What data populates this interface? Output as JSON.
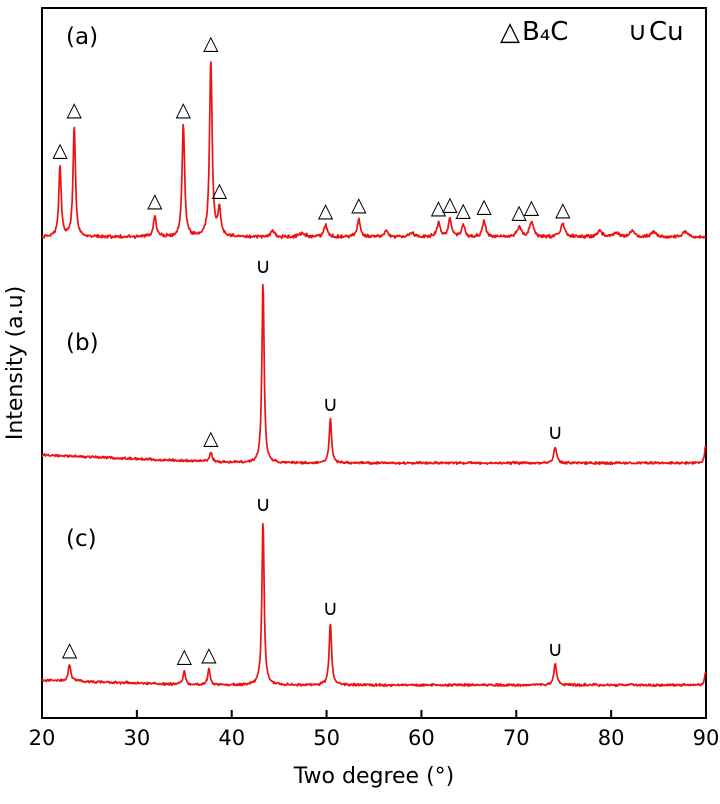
{
  "figure": {
    "background": "#ffffff",
    "trace_color": "#ee1111",
    "axis_color": "#000000"
  },
  "chart_data": {
    "type": "line",
    "title": "",
    "xlabel": "Two degree (°)",
    "ylabel": "Intensity (a.u)",
    "xlim": [
      20,
      90
    ],
    "x_ticks": [
      20,
      30,
      40,
      50,
      60,
      70,
      80,
      90
    ],
    "grid": false,
    "y_axis_units": "arbitrary (stacked XRD traces, no y ticks)",
    "legend": {
      "position": "top-right",
      "items": [
        {
          "key": "b4c",
          "symbol": "△",
          "label": "B₄C"
        },
        {
          "key": "cu",
          "symbol": "∪",
          "label": "Cu"
        }
      ]
    },
    "series": [
      {
        "id": "a",
        "name": "(a)",
        "peaks": [
          [
            21.9,
            0.4,
            0.15
          ],
          [
            23.4,
            0.63,
            0.15
          ],
          [
            31.9,
            0.12,
            0.18
          ],
          [
            34.9,
            0.63,
            0.16
          ],
          [
            37.8,
            1.0,
            0.16
          ],
          [
            38.7,
            0.15,
            0.18
          ],
          [
            44.3,
            0.034,
            0.25
          ],
          [
            47.5,
            0.022,
            0.3
          ],
          [
            49.9,
            0.067,
            0.2
          ],
          [
            53.4,
            0.1,
            0.2
          ],
          [
            56.3,
            0.034,
            0.25
          ],
          [
            59.0,
            0.022,
            0.3
          ],
          [
            61.8,
            0.079,
            0.2
          ],
          [
            63.0,
            0.1,
            0.2
          ],
          [
            64.4,
            0.067,
            0.2
          ],
          [
            66.6,
            0.09,
            0.2
          ],
          [
            70.3,
            0.056,
            0.25
          ],
          [
            71.6,
            0.084,
            0.25
          ],
          [
            74.9,
            0.073,
            0.25
          ],
          [
            78.8,
            0.034,
            0.3
          ],
          [
            80.5,
            0.022,
            0.3
          ],
          [
            82.2,
            0.034,
            0.3
          ],
          [
            84.5,
            0.028,
            0.3
          ],
          [
            87.8,
            0.028,
            0.3
          ]
        ],
        "markers": [
          {
            "x": 21.9,
            "type": "b4c"
          },
          {
            "x": 23.4,
            "type": "b4c"
          },
          {
            "x": 31.9,
            "type": "b4c"
          },
          {
            "x": 34.9,
            "type": "b4c"
          },
          {
            "x": 37.8,
            "type": "b4c"
          },
          {
            "x": 38.7,
            "type": "b4c"
          },
          {
            "x": 49.9,
            "type": "b4c"
          },
          {
            "x": 53.4,
            "type": "b4c"
          },
          {
            "x": 61.8,
            "type": "b4c"
          },
          {
            "x": 63.0,
            "type": "b4c"
          },
          {
            "x": 64.4,
            "type": "b4c"
          },
          {
            "x": 66.6,
            "type": "b4c"
          },
          {
            "x": 70.3,
            "type": "b4c"
          },
          {
            "x": 71.6,
            "type": "b4c"
          },
          {
            "x": 74.9,
            "type": "b4c"
          }
        ]
      },
      {
        "id": "b",
        "name": "(b)",
        "peaks": [
          [
            37.8,
            0.05,
            0.16
          ],
          [
            43.3,
            1.0,
            0.14
          ],
          [
            50.4,
            0.24,
            0.15
          ],
          [
            74.1,
            0.088,
            0.18
          ],
          [
            89.95,
            0.09,
            0.12
          ]
        ],
        "markers": [
          {
            "x": 37.8,
            "type": "b4c"
          },
          {
            "x": 43.3,
            "type": "cu"
          },
          {
            "x": 50.4,
            "type": "cu"
          },
          {
            "x": 74.1,
            "type": "cu"
          }
        ]
      },
      {
        "id": "c",
        "name": "(c)",
        "peaks": [
          [
            22.9,
            0.102,
            0.15
          ],
          [
            35.0,
            0.084,
            0.15
          ],
          [
            37.6,
            0.096,
            0.15
          ],
          [
            43.3,
            1.0,
            0.14
          ],
          [
            50.4,
            0.373,
            0.15
          ],
          [
            74.1,
            0.127,
            0.18
          ],
          [
            89.95,
            0.08,
            0.12
          ]
        ],
        "markers": [
          {
            "x": 22.9,
            "type": "b4c"
          },
          {
            "x": 35.0,
            "type": "b4c"
          },
          {
            "x": 37.6,
            "type": "b4c"
          },
          {
            "x": 43.3,
            "type": "cu"
          },
          {
            "x": 50.4,
            "type": "cu"
          },
          {
            "x": 74.1,
            "type": "cu"
          }
        ]
      }
    ]
  }
}
